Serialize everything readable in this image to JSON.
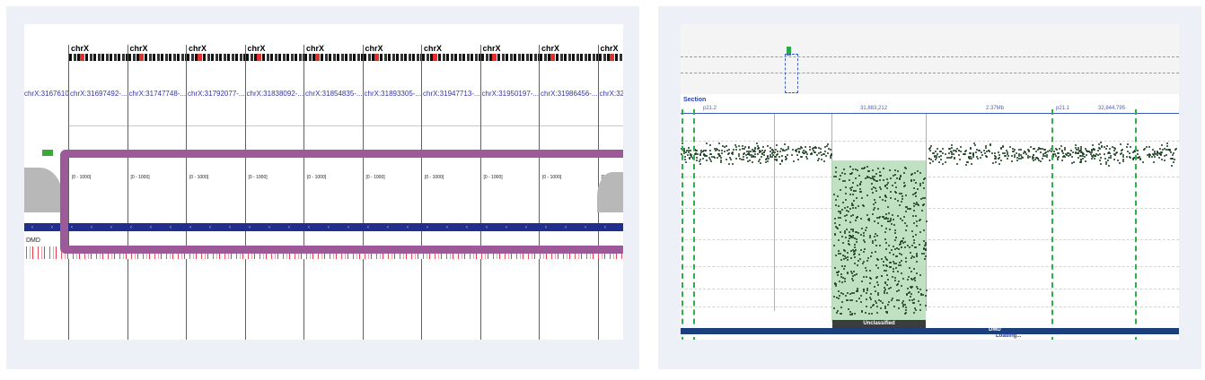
{
  "left": {
    "chromosome": "chrX",
    "columns": [
      {
        "locus": "chrX:31676107-...",
        "range": "[0 - 1000]"
      },
      {
        "locus": "chrX:31697492-...",
        "range": "[0 - 1000]"
      },
      {
        "locus": "chrX:31747748-...",
        "range": "[0 - 1000]"
      },
      {
        "locus": "chrX:31792077-...",
        "range": "[0 - 1000]"
      },
      {
        "locus": "chrX:31838092-...",
        "range": "[0 - 1000]"
      },
      {
        "locus": "chrX:31854835-...",
        "range": "[0 - 1000]"
      },
      {
        "locus": "chrX:31893305-...",
        "range": "[0 - 1000]"
      },
      {
        "locus": "chrX:31947713-...",
        "range": "[0 - 1000]"
      },
      {
        "locus": "chrX:31950197-...",
        "range": "[0 - 1000]"
      },
      {
        "locus": "chrX:31986456-...",
        "range": "[0 - 1000]"
      },
      {
        "locus": "chrX:32",
        "range": "[0 - 1000]"
      }
    ],
    "gene_label": "DMD",
    "highlight_color": "#9c5a98"
  },
  "right": {
    "section_label": "Section",
    "coords": [
      "p21.2",
      "31,883,212",
      "2.37Mb",
      "p21.1",
      "32,844,795"
    ],
    "unclassified_label": "Unclassified",
    "gene_label": "DMD",
    "loading_label": "Loading...",
    "shade_color": "#b6dcb8",
    "marker_color": "#2cb04a"
  }
}
